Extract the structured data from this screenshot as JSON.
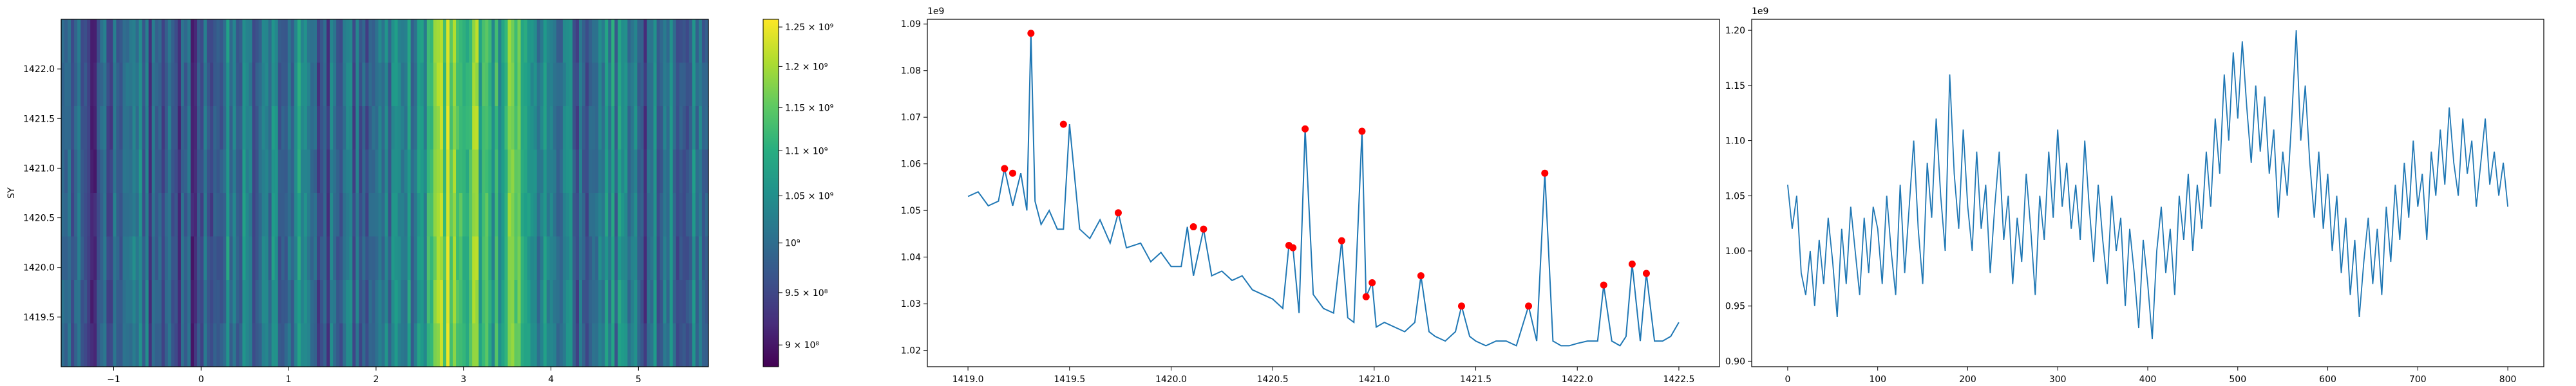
{
  "figure": {
    "background": "#ffffff"
  },
  "chart_data": [
    {
      "type": "heatmap",
      "title": "",
      "xlabel": "",
      "ylabel": "SY",
      "xlim": [
        -1.6,
        5.8
      ],
      "ylim": [
        1419.0,
        1422.5
      ],
      "xticks": [
        -1,
        0,
        1,
        2,
        3,
        4,
        5
      ],
      "xtick_labels": [
        "−1",
        "0",
        "1",
        "2",
        "3",
        "4",
        "5"
      ],
      "yticks": [
        1419.5,
        1420.0,
        1420.5,
        1421.0,
        1421.5,
        1422.0
      ],
      "ytick_labels": [
        "1419.5",
        "1420.0",
        "1420.5",
        "1421.0",
        "1421.5",
        "1422.0"
      ],
      "colormap": "viridis",
      "colorbar": {
        "vmin": 880000000,
        "vmax": 1260000000,
        "scale": "log",
        "ticks": [
          900000000,
          950000000,
          1000000000,
          1050000000,
          1100000000,
          1150000000,
          1200000000,
          1250000000
        ],
        "tick_labels": [
          "9 × 10⁸",
          "9.5 × 10⁸",
          "10⁹",
          "1.05 × 10⁹",
          "1.1 × 10⁹",
          "1.15 × 10⁹",
          "1.2 × 10⁹",
          "1.25 × 10⁹"
        ]
      },
      "column_profile": {
        "x": [
          -1.5,
          -1.3,
          -1.1,
          -0.9,
          -0.7,
          -0.5,
          -0.3,
          -0.1,
          0.1,
          0.3,
          0.5,
          0.7,
          0.9,
          1.1,
          1.3,
          1.5,
          1.7,
          1.9,
          2.1,
          2.3,
          2.5,
          2.7,
          2.8,
          2.9,
          3.0,
          3.1,
          3.2,
          3.3,
          3.4,
          3.5,
          3.6,
          3.7,
          3.9,
          4.1,
          4.3,
          4.5,
          4.7,
          4.9,
          5.1,
          5.3,
          5.5,
          5.7
        ],
        "values": [
          1000000000,
          960000000,
          980000000,
          1010000000,
          1020000000,
          950000000,
          990000000,
          960000000,
          1000000000,
          1030000000,
          1010000000,
          990000000,
          1020000000,
          1040000000,
          1000000000,
          980000000,
          1010000000,
          930000000,
          1000000000,
          1030000000,
          1060000000,
          1150000000,
          1200000000,
          1180000000,
          1140000000,
          1190000000,
          1100000000,
          1130000000,
          1060000000,
          1120000000,
          1190000000,
          1080000000,
          1020000000,
          1050000000,
          990000000,
          1000000000,
          1040000000,
          1010000000,
          980000000,
          1030000000,
          1000000000,
          1020000000
        ]
      }
    },
    {
      "type": "scatter",
      "title": "",
      "xlabel": "",
      "ylabel": "",
      "offset_text": "1e9",
      "xlim": [
        1418.8,
        1422.7
      ],
      "ylim": [
        1.0165,
        1.091
      ],
      "xticks": [
        1419.0,
        1419.5,
        1420.0,
        1420.5,
        1421.0,
        1421.5,
        1422.0,
        1422.5
      ],
      "xtick_labels": [
        "1419.0",
        "1419.5",
        "1420.0",
        "1420.5",
        "1421.0",
        "1421.5",
        "1422.0",
        "1422.5"
      ],
      "yticks": [
        1.02,
        1.03,
        1.04,
        1.05,
        1.06,
        1.07,
        1.08,
        1.09
      ],
      "ytick_labels": [
        "1.02",
        "1.03",
        "1.04",
        "1.05",
        "1.06",
        "1.07",
        "1.08",
        "1.09"
      ],
      "series": [
        {
          "kind": "line",
          "color": "#1f77b4",
          "x": [
            1419.0,
            1419.05,
            1419.1,
            1419.15,
            1419.18,
            1419.22,
            1419.26,
            1419.29,
            1419.31,
            1419.33,
            1419.36,
            1419.4,
            1419.44,
            1419.47,
            1419.5,
            1419.55,
            1419.6,
            1419.65,
            1419.7,
            1419.74,
            1419.78,
            1419.85,
            1419.9,
            1419.95,
            1420.0,
            1420.05,
            1420.08,
            1420.11,
            1420.16,
            1420.2,
            1420.25,
            1420.3,
            1420.35,
            1420.4,
            1420.45,
            1420.5,
            1420.55,
            1420.58,
            1420.6,
            1420.63,
            1420.66,
            1420.7,
            1420.75,
            1420.8,
            1420.84,
            1420.87,
            1420.9,
            1420.94,
            1420.96,
            1420.99,
            1421.01,
            1421.05,
            1421.1,
            1421.15,
            1421.2,
            1421.23,
            1421.27,
            1421.3,
            1421.35,
            1421.4,
            1421.43,
            1421.47,
            1421.5,
            1421.55,
            1421.6,
            1421.65,
            1421.7,
            1421.76,
            1421.8,
            1421.84,
            1421.88,
            1421.92,
            1421.96,
            1422.0,
            1422.05,
            1422.1,
            1422.13,
            1422.17,
            1422.21,
            1422.24,
            1422.27,
            1422.31,
            1422.34,
            1422.38,
            1422.42,
            1422.46,
            1422.5
          ],
          "y": [
            1.053,
            1.054,
            1.051,
            1.052,
            1.059,
            1.051,
            1.058,
            1.05,
            1.088,
            1.052,
            1.047,
            1.05,
            1.046,
            1.046,
            1.0685,
            1.046,
            1.044,
            1.048,
            1.043,
            1.0495,
            1.042,
            1.043,
            1.039,
            1.041,
            1.038,
            1.038,
            1.0465,
            1.036,
            1.046,
            1.036,
            1.037,
            1.035,
            1.036,
            1.033,
            1.032,
            1.031,
            1.029,
            1.0425,
            1.042,
            1.028,
            1.0675,
            1.032,
            1.029,
            1.028,
            1.0435,
            1.027,
            1.026,
            1.067,
            1.0315,
            1.0345,
            1.025,
            1.026,
            1.025,
            1.024,
            1.026,
            1.036,
            1.024,
            1.023,
            1.022,
            1.024,
            1.0295,
            1.023,
            1.022,
            1.021,
            1.022,
            1.022,
            1.021,
            1.0295,
            1.022,
            1.058,
            1.022,
            1.021,
            1.021,
            1.0215,
            1.022,
            1.022,
            1.034,
            1.022,
            1.021,
            1.023,
            1.0385,
            1.022,
            1.0365,
            1.022,
            1.022,
            1.023,
            1.026
          ]
        },
        {
          "kind": "markers",
          "color": "#ff0000",
          "x": [
            1419.18,
            1419.22,
            1419.31,
            1419.47,
            1419.74,
            1420.11,
            1420.16,
            1420.58,
            1420.6,
            1420.66,
            1420.84,
            1420.94,
            1420.96,
            1420.99,
            1421.23,
            1421.43,
            1421.76,
            1421.84,
            1422.13,
            1422.27,
            1422.34
          ],
          "y": [
            1.059,
            1.058,
            1.088,
            1.0685,
            1.0495,
            1.0465,
            1.046,
            1.0425,
            1.042,
            1.0675,
            1.0435,
            1.067,
            1.0315,
            1.0345,
            1.036,
            1.0295,
            1.0295,
            1.058,
            1.034,
            1.0385,
            1.0365
          ]
        }
      ]
    },
    {
      "type": "line",
      "title": "",
      "xlabel": "",
      "ylabel": "",
      "offset_text": "1e9",
      "xlim": [
        -40,
        840
      ],
      "ylim": [
        0.895,
        1.21
      ],
      "xticks": [
        0,
        100,
        200,
        300,
        400,
        500,
        600,
        700,
        800
      ],
      "xtick_labels": [
        "0",
        "100",
        "200",
        "300",
        "400",
        "500",
        "600",
        "700",
        "800"
      ],
      "yticks": [
        0.9,
        0.95,
        1.0,
        1.05,
        1.1,
        1.15,
        1.2
      ],
      "ytick_labels": [
        "0.90",
        "0.95",
        "1.00",
        "1.05",
        "1.10",
        "1.15",
        "1.20"
      ],
      "series": [
        {
          "color": "#1f77b4",
          "x": [
            0,
            5,
            10,
            15,
            20,
            25,
            30,
            35,
            40,
            45,
            50,
            55,
            60,
            65,
            70,
            75,
            80,
            85,
            90,
            95,
            100,
            105,
            110,
            115,
            120,
            125,
            130,
            135,
            140,
            145,
            150,
            155,
            160,
            165,
            170,
            175,
            180,
            185,
            190,
            195,
            200,
            205,
            210,
            215,
            220,
            225,
            230,
            235,
            240,
            245,
            250,
            255,
            260,
            265,
            270,
            275,
            280,
            285,
            290,
            295,
            300,
            305,
            310,
            315,
            320,
            325,
            330,
            335,
            340,
            345,
            350,
            355,
            360,
            365,
            370,
            375,
            380,
            385,
            390,
            395,
            400,
            405,
            410,
            415,
            420,
            425,
            430,
            435,
            440,
            445,
            450,
            455,
            460,
            465,
            470,
            475,
            480,
            485,
            490,
            495,
            500,
            505,
            510,
            515,
            520,
            525,
            530,
            535,
            540,
            545,
            550,
            555,
            560,
            565,
            570,
            575,
            580,
            585,
            590,
            595,
            600,
            605,
            610,
            615,
            620,
            625,
            630,
            635,
            640,
            645,
            650,
            655,
            660,
            665,
            670,
            675,
            680,
            685,
            690,
            695,
            700,
            705,
            710,
            715,
            720,
            725,
            730,
            735,
            740,
            745,
            750,
            755,
            760,
            765,
            770,
            775,
            780,
            785,
            790,
            795,
            800
          ],
          "y": [
            1.06,
            1.02,
            1.05,
            0.98,
            0.96,
            1.0,
            0.95,
            1.01,
            0.97,
            1.03,
            0.99,
            0.94,
            1.02,
            0.97,
            1.04,
            1.0,
            0.96,
            1.03,
            0.98,
            1.04,
            1.02,
            0.97,
            1.05,
            1.0,
            0.96,
            1.06,
            0.98,
            1.04,
            1.1,
            1.02,
            0.97,
            1.08,
            1.03,
            1.12,
            1.05,
            1.0,
            1.16,
            1.07,
            1.02,
            1.11,
            1.04,
            1.0,
            1.09,
            1.02,
            1.06,
            0.98,
            1.04,
            1.09,
            1.01,
            1.05,
            0.97,
            1.03,
            0.99,
            1.07,
            1.02,
            0.96,
            1.05,
            1.01,
            1.09,
            1.03,
            1.11,
            1.04,
            1.08,
            1.02,
            1.06,
            1.01,
            1.1,
            1.04,
            0.99,
            1.06,
            1.01,
            0.97,
            1.05,
            1.0,
            1.03,
            0.95,
            1.02,
            0.98,
            0.93,
            1.01,
            0.97,
            0.92,
            1.0,
            1.04,
            0.98,
            1.02,
            0.96,
            1.05,
            1.01,
            1.07,
            1.0,
            1.06,
            1.02,
            1.09,
            1.04,
            1.12,
            1.07,
            1.16,
            1.1,
            1.18,
            1.12,
            1.19,
            1.13,
            1.08,
            1.15,
            1.09,
            1.14,
            1.07,
            1.11,
            1.03,
            1.09,
            1.05,
            1.12,
            1.2,
            1.1,
            1.15,
            1.08,
            1.03,
            1.09,
            1.02,
            1.07,
            1.0,
            1.05,
            0.98,
            1.03,
            0.96,
            1.01,
            0.94,
            0.99,
            1.03,
            0.97,
            1.02,
            0.96,
            1.04,
            0.99,
            1.06,
            1.01,
            1.08,
            1.03,
            1.1,
            1.04,
            1.07,
            1.01,
            1.09,
            1.05,
            1.11,
            1.06,
            1.13,
            1.08,
            1.05,
            1.12,
            1.07,
            1.1,
            1.04,
            1.08,
            1.12,
            1.06,
            1.09,
            1.05,
            1.08,
            1.04
          ]
        }
      ]
    }
  ]
}
